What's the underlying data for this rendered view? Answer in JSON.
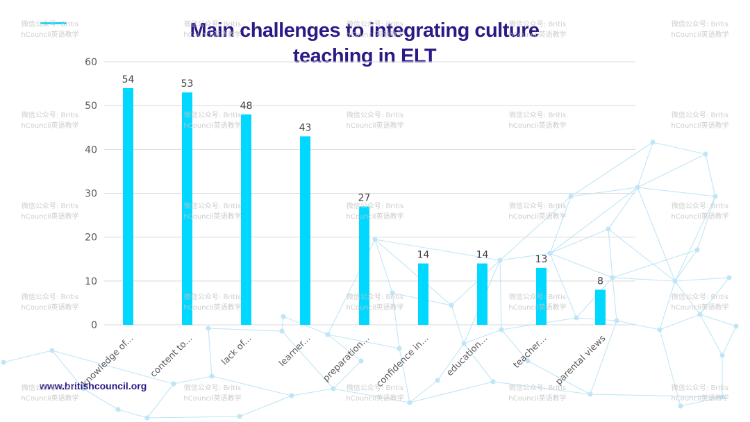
{
  "header": {
    "title_line1": "Main challenges to integrating culture",
    "title_line2": "teaching in ELT"
  },
  "footer": {
    "url": "www.britishcouncil.org"
  },
  "watermark": {
    "line1": "微信公众号: Britis",
    "line2": "hCouncil英语教学"
  },
  "colors": {
    "bar": "#00d8ff",
    "title": "#2a1a86",
    "network": "#bfe6f6",
    "grid": "#d9d9d9"
  },
  "chart_data": {
    "type": "bar",
    "title": "Main challenges to integrating culture teaching in ELT",
    "categories": [
      "knowledge of...",
      "content to...",
      "lack of...",
      "learner...",
      "preparation...",
      "confidence in...",
      "education...",
      "teacher...",
      "parental views"
    ],
    "values": [
      54,
      53,
      48,
      43,
      27,
      14,
      14,
      13,
      8
    ],
    "data_labels": [
      "54",
      "53",
      "48",
      "43",
      "27",
      "14",
      "14",
      "13",
      "8"
    ],
    "yticks": [
      "0",
      "10",
      "20",
      "30",
      "40",
      "50",
      "60"
    ],
    "ylim": [
      0,
      60
    ],
    "grid": true,
    "legend": "none"
  }
}
